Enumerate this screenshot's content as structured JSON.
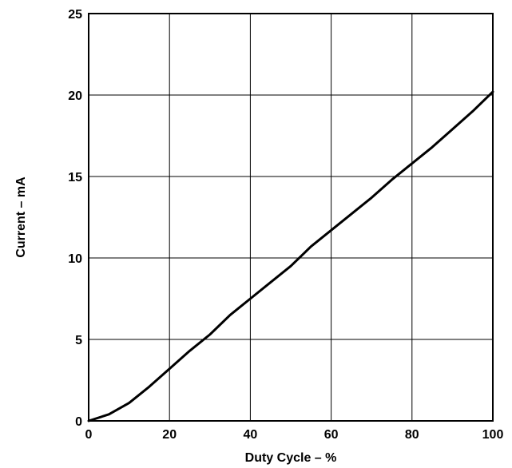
{
  "chart_data": {
    "type": "line",
    "xlabel": "Duty Cycle – %",
    "ylabel": "Current – mA",
    "xlim": [
      0,
      100
    ],
    "ylim": [
      0,
      25
    ],
    "xticks": [
      0,
      20,
      40,
      60,
      80,
      100
    ],
    "yticks": [
      0,
      5,
      10,
      15,
      20,
      25
    ],
    "xtick_labels": [
      "0",
      "20",
      "40",
      "60",
      "80",
      "100"
    ],
    "ytick_labels": [
      "0",
      "5",
      "10",
      "15",
      "20",
      "25"
    ],
    "grid": true,
    "series": [
      {
        "x": [
          0,
          5,
          10,
          15,
          20,
          25,
          30,
          35,
          40,
          45,
          50,
          55,
          60,
          65,
          70,
          75,
          80,
          85,
          90,
          95,
          100
        ],
        "y": [
          0,
          0.4,
          1.1,
          2.1,
          3.2,
          4.3,
          5.3,
          6.5,
          7.5,
          8.5,
          9.5,
          10.7,
          11.7,
          12.7,
          13.7,
          14.8,
          15.8,
          16.8,
          17.9,
          19.0,
          20.2
        ]
      }
    ],
    "colors": {
      "line": "#000000",
      "grid": "#000000",
      "frame": "#000000"
    }
  }
}
